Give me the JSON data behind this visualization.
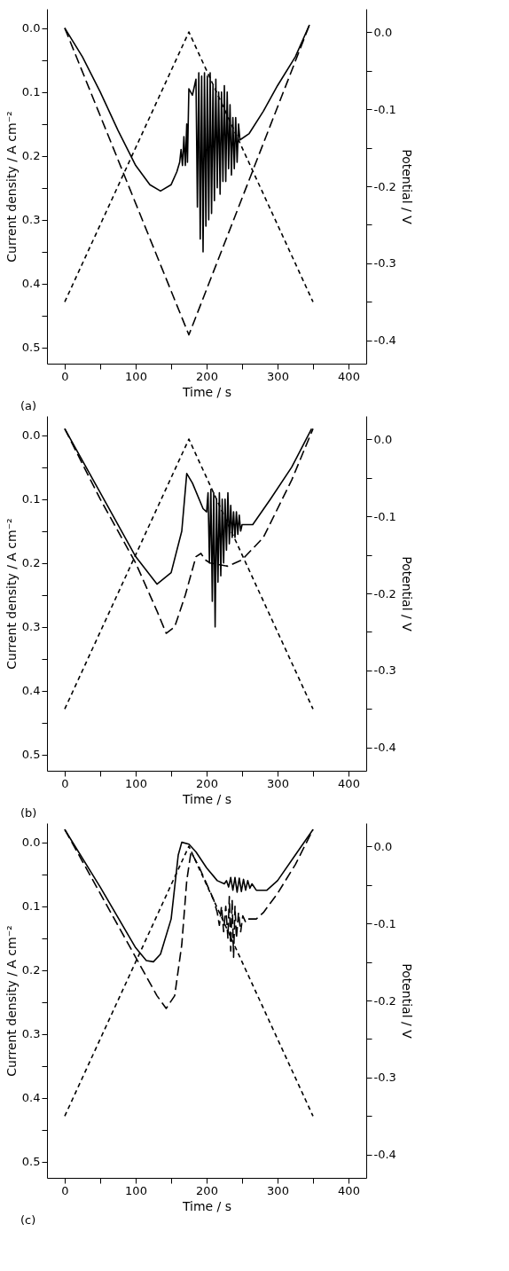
{
  "chart_data": [
    {
      "type": "line",
      "annotations": [
        "(a)"
      ],
      "xlabel": "Time / s",
      "ylabel": "Current density / A cm⁻²",
      "y2label": "Potential / V",
      "xlim": [
        -25,
        425
      ],
      "xticks": [
        0,
        {
          "value": 50,
          "label": null
        },
        100,
        {
          "value": 150,
          "label": null
        },
        200,
        {
          "value": 250,
          "label": null
        },
        300,
        {
          "value": 350,
          "label": null
        },
        400
      ],
      "ylim": [
        0.525,
        -0.03
      ],
      "yticks": [
        {
          "value": 0,
          "label": "0.0"
        },
        {
          "value": 0.05,
          "label": null
        },
        {
          "value": 0.1,
          "label": "0.1"
        },
        {
          "value": 0.15,
          "label": null
        },
        {
          "value": 0.2,
          "label": "0.2"
        },
        {
          "value": 0.25,
          "label": null
        },
        {
          "value": 0.3,
          "label": "0.3"
        },
        {
          "value": 0.35,
          "label": null
        },
        {
          "value": 0.4,
          "label": "0.4"
        },
        {
          "value": 0.45,
          "label": null
        },
        {
          "value": 0.5,
          "label": "0.5"
        }
      ],
      "y2lim": [
        -0.43,
        0.03
      ],
      "y2ticks": [
        {
          "value": 0,
          "label": "0.0"
        },
        {
          "value": -0.05,
          "label": null
        },
        {
          "value": -0.1,
          "label": "-0.1"
        },
        {
          "value": -0.15,
          "label": null
        },
        {
          "value": -0.2,
          "label": "-0.2"
        },
        {
          "value": -0.25,
          "label": null
        },
        {
          "value": -0.3,
          "label": "-0.3"
        },
        {
          "value": -0.35,
          "label": null
        },
        {
          "value": -0.4,
          "label": "-0.4"
        }
      ],
      "grid": false,
      "marker": "none",
      "series": [
        {
          "color": "#000000",
          "line_style": "solid",
          "x": [
            0,
            25,
            50,
            75,
            100,
            120,
            135,
            150,
            158,
            162,
            164,
            166,
            168,
            170,
            172,
            173,
            175,
            180,
            185,
            187,
            189,
            191,
            193,
            195,
            197,
            199,
            201,
            203,
            205,
            207,
            209,
            211,
            213,
            215,
            217,
            219,
            221,
            223,
            225,
            227,
            229,
            231,
            233,
            235,
            237,
            239,
            241,
            243,
            245,
            247,
            260,
            280,
            300,
            325,
            345
          ],
          "values": [
            0,
            0.045,
            0.1,
            0.16,
            0.215,
            0.245,
            0.255,
            0.245,
            0.225,
            0.21,
            0.19,
            0.215,
            0.17,
            0.215,
            0.15,
            0.21,
            0.095,
            0.105,
            0.08,
            0.28,
            0.07,
            0.33,
            0.075,
            0.35,
            0.07,
            0.31,
            0.075,
            0.3,
            0.07,
            0.29,
            0.09,
            0.27,
            0.08,
            0.25,
            0.1,
            0.26,
            0.1,
            0.24,
            0.09,
            0.24,
            0.1,
            0.22,
            0.12,
            0.23,
            0.14,
            0.22,
            0.14,
            0.21,
            0.15,
            0.175,
            0.165,
            0.13,
            0.09,
            0.045,
            -0.005
          ]
        },
        {
          "color": "#000000",
          "line_style": "dashed",
          "x": [
            0,
            175,
            345
          ],
          "values": [
            0,
            0.48,
            -0.005
          ]
        },
        {
          "color": "#000000",
          "line_style": "dashed",
          "axis": "y2",
          "x": [
            0,
            175,
            350
          ],
          "values": [
            -0.35,
            0,
            -0.35
          ]
        }
      ]
    },
    {
      "type": "line",
      "annotations": [
        "(b)"
      ],
      "xlabel": "Time / s",
      "ylabel": "Current density / A cm⁻²",
      "y2label": "Potential / V",
      "xlim": [
        -25,
        425
      ],
      "xticks": [
        0,
        {
          "value": 50,
          "label": null
        },
        100,
        {
          "value": 150,
          "label": null
        },
        200,
        {
          "value": 250,
          "label": null
        },
        300,
        {
          "value": 350,
          "label": null
        },
        400
      ],
      "ylim": [
        0.525,
        -0.03
      ],
      "yticks": [
        {
          "value": 0,
          "label": "0.0"
        },
        {
          "value": 0.05,
          "label": null
        },
        {
          "value": 0.1,
          "label": "0.1"
        },
        {
          "value": 0.15,
          "label": null
        },
        {
          "value": 0.2,
          "label": "0.2"
        },
        {
          "value": 0.25,
          "label": null
        },
        {
          "value": 0.3,
          "label": "0.3"
        },
        {
          "value": 0.35,
          "label": null
        },
        {
          "value": 0.4,
          "label": "0.4"
        },
        {
          "value": 0.45,
          "label": null
        },
        {
          "value": 0.5,
          "label": "0.5"
        }
      ],
      "y2lim": [
        -0.43,
        0.03
      ],
      "y2ticks": [
        {
          "value": 0,
          "label": "0.0"
        },
        {
          "value": -0.05,
          "label": null
        },
        {
          "value": -0.1,
          "label": "-0.1"
        },
        {
          "value": -0.15,
          "label": null
        },
        {
          "value": -0.2,
          "label": "-0.2"
        },
        {
          "value": -0.25,
          "label": null
        },
        {
          "value": -0.3,
          "label": "-0.3"
        },
        {
          "value": -0.35,
          "label": null
        },
        {
          "value": -0.4,
          "label": "-0.4"
        }
      ],
      "grid": false,
      "marker": "none",
      "series": [
        {
          "color": "#000000",
          "line_style": "solid",
          "x": [
            0,
            50,
            100,
            130,
            150,
            165,
            172,
            180,
            195,
            200,
            202,
            204,
            206,
            208,
            210,
            212,
            214,
            216,
            218,
            220,
            222,
            224,
            226,
            228,
            230,
            232,
            234,
            236,
            238,
            240,
            242,
            244,
            246,
            248,
            250,
            265,
            290,
            320,
            348
          ],
          "values": [
            -0.01,
            0.09,
            0.19,
            0.233,
            0.215,
            0.15,
            0.06,
            0.075,
            0.115,
            0.12,
            0.09,
            0.2,
            0.085,
            0.26,
            0.09,
            0.3,
            0.1,
            0.23,
            0.09,
            0.22,
            0.1,
            0.2,
            0.1,
            0.18,
            0.09,
            0.17,
            0.11,
            0.16,
            0.12,
            0.16,
            0.12,
            0.155,
            0.125,
            0.15,
            0.14,
            0.14,
            0.1,
            0.05,
            -0.01
          ]
        },
        {
          "color": "#000000",
          "line_style": "dashed",
          "x": [
            0,
            50,
            100,
            130,
            143,
            155,
            170,
            185,
            192,
            198,
            205,
            230,
            250,
            280,
            320,
            350
          ],
          "values": [
            -0.01,
            0.1,
            0.2,
            0.275,
            0.31,
            0.3,
            0.25,
            0.19,
            0.185,
            0.195,
            0.2,
            0.205,
            0.195,
            0.16,
            0.07,
            -0.01
          ]
        },
        {
          "color": "#000000",
          "line_style": "dashed",
          "axis": "y2",
          "x": [
            0,
            175,
            350
          ],
          "values": [
            -0.35,
            0,
            -0.35
          ]
        }
      ]
    },
    {
      "type": "line",
      "annotations": [
        "(c)"
      ],
      "xlabel": "Time / s",
      "ylabel": "Current density / A cm⁻²",
      "y2label": "Potential / V",
      "xlim": [
        -25,
        425
      ],
      "xticks": [
        0,
        {
          "value": 50,
          "label": null
        },
        100,
        {
          "value": 150,
          "label": null
        },
        200,
        {
          "value": 250,
          "label": null
        },
        300,
        {
          "value": 350,
          "label": null
        },
        400
      ],
      "ylim": [
        0.525,
        -0.03
      ],
      "yticks": [
        {
          "value": 0,
          "label": "0.0"
        },
        {
          "value": 0.05,
          "label": null
        },
        {
          "value": 0.1,
          "label": "0.1"
        },
        {
          "value": 0.15,
          "label": null
        },
        {
          "value": 0.2,
          "label": "0.2"
        },
        {
          "value": 0.25,
          "label": null
        },
        {
          "value": 0.3,
          "label": "0.3"
        },
        {
          "value": 0.35,
          "label": null
        },
        {
          "value": 0.4,
          "label": "0.4"
        },
        {
          "value": 0.45,
          "label": null
        },
        {
          "value": 0.5,
          "label": "0.5"
        }
      ],
      "y2lim": [
        -0.43,
        0.03
      ],
      "y2ticks": [
        {
          "value": 0,
          "label": "0.0"
        },
        {
          "value": -0.05,
          "label": null
        },
        {
          "value": -0.1,
          "label": "-0.1"
        },
        {
          "value": -0.15,
          "label": null
        },
        {
          "value": -0.2,
          "label": "-0.2"
        },
        {
          "value": -0.25,
          "label": null
        },
        {
          "value": -0.3,
          "label": "-0.3"
        },
        {
          "value": -0.35,
          "label": null
        },
        {
          "value": -0.4,
          "label": "-0.4"
        }
      ],
      "grid": false,
      "marker": "none",
      "series": [
        {
          "color": "#000000",
          "line_style": "solid",
          "x": [
            0,
            50,
            100,
            115,
            125,
            135,
            150,
            160,
            165,
            175,
            185,
            200,
            215,
            225,
            228,
            231,
            234,
            237,
            240,
            243,
            246,
            249,
            252,
            255,
            258,
            261,
            264,
            270,
            285,
            300,
            325,
            350
          ],
          "values": [
            -0.02,
            0.07,
            0.165,
            0.185,
            0.187,
            0.175,
            0.12,
            0.02,
            0,
            0.003,
            0.015,
            0.04,
            0.06,
            0.065,
            0.06,
            0.07,
            0.055,
            0.075,
            0.055,
            0.078,
            0.056,
            0.077,
            0.058,
            0.075,
            0.06,
            0.072,
            0.065,
            0.075,
            0.075,
            0.06,
            0.02,
            -0.02
          ]
        },
        {
          "color": "#000000",
          "line_style": "dashed",
          "x": [
            0,
            50,
            100,
            130,
            143,
            155,
            165,
            172,
            178,
            190,
            210,
            215,
            218,
            221,
            224,
            227,
            230,
            232,
            234,
            236,
            238,
            240,
            242,
            245,
            248,
            251,
            255,
            258,
            270,
            280,
            300,
            325,
            350
          ],
          "values": [
            -0.02,
            0.08,
            0.18,
            0.24,
            0.26,
            0.24,
            0.16,
            0.06,
            0.015,
            0.04,
            0.09,
            0.11,
            0.13,
            0.1,
            0.14,
            0.1,
            0.15,
            0.085,
            0.17,
            0.09,
            0.18,
            0.1,
            0.15,
            0.11,
            0.14,
            0.115,
            0.125,
            0.12,
            0.12,
            0.11,
            0.08,
            0.035,
            -0.02
          ]
        },
        {
          "color": "#000000",
          "line_style": "dashed",
          "axis": "y2",
          "x": [
            0,
            175,
            350
          ],
          "values": [
            -0.35,
            0,
            -0.35
          ]
        }
      ]
    }
  ]
}
